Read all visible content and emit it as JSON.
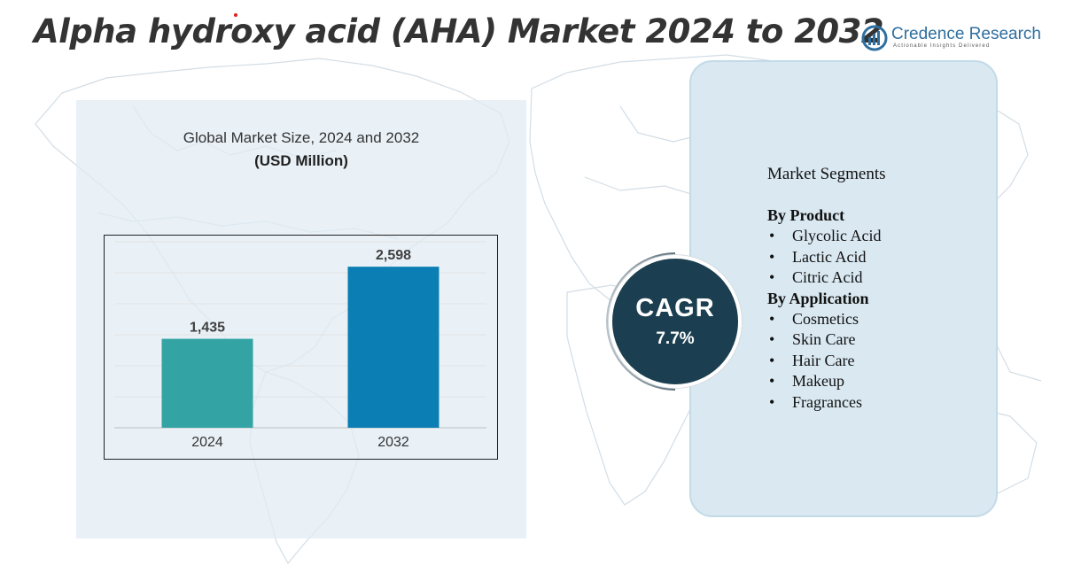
{
  "title": "Alpha hydroxy acid (AHA) Market 2024 to 2032",
  "brand": {
    "name": "Credence Research",
    "tagline": "Actionable Insights Delivered",
    "color": "#2f6f9f"
  },
  "chart_data": {
    "type": "bar",
    "title": "Global Market Size, 2024 and 2032",
    "ylabel": "(USD Million)",
    "xlabel": "",
    "categories": [
      "2024",
      "2032"
    ],
    "values": [
      1435,
      2598
    ],
    "value_labels": [
      "1,435",
      "2,598"
    ],
    "colors": [
      "#33a3a3",
      "#0b7eb3"
    ],
    "ylim": [
      0,
      3000
    ],
    "grid": true,
    "legend": "none"
  },
  "cagr": {
    "label": "CAGR",
    "value": "7.7%"
  },
  "segments": {
    "heading": "Market Segments",
    "groups": [
      {
        "title": "By Product",
        "items": [
          "Glycolic Acid",
          "Lactic Acid",
          "Citric Acid"
        ]
      },
      {
        "title": "By Application",
        "items": [
          "Cosmetics",
          "Skin Care",
          "Hair Care",
          "Makeup",
          "Fragrances"
        ]
      }
    ]
  }
}
